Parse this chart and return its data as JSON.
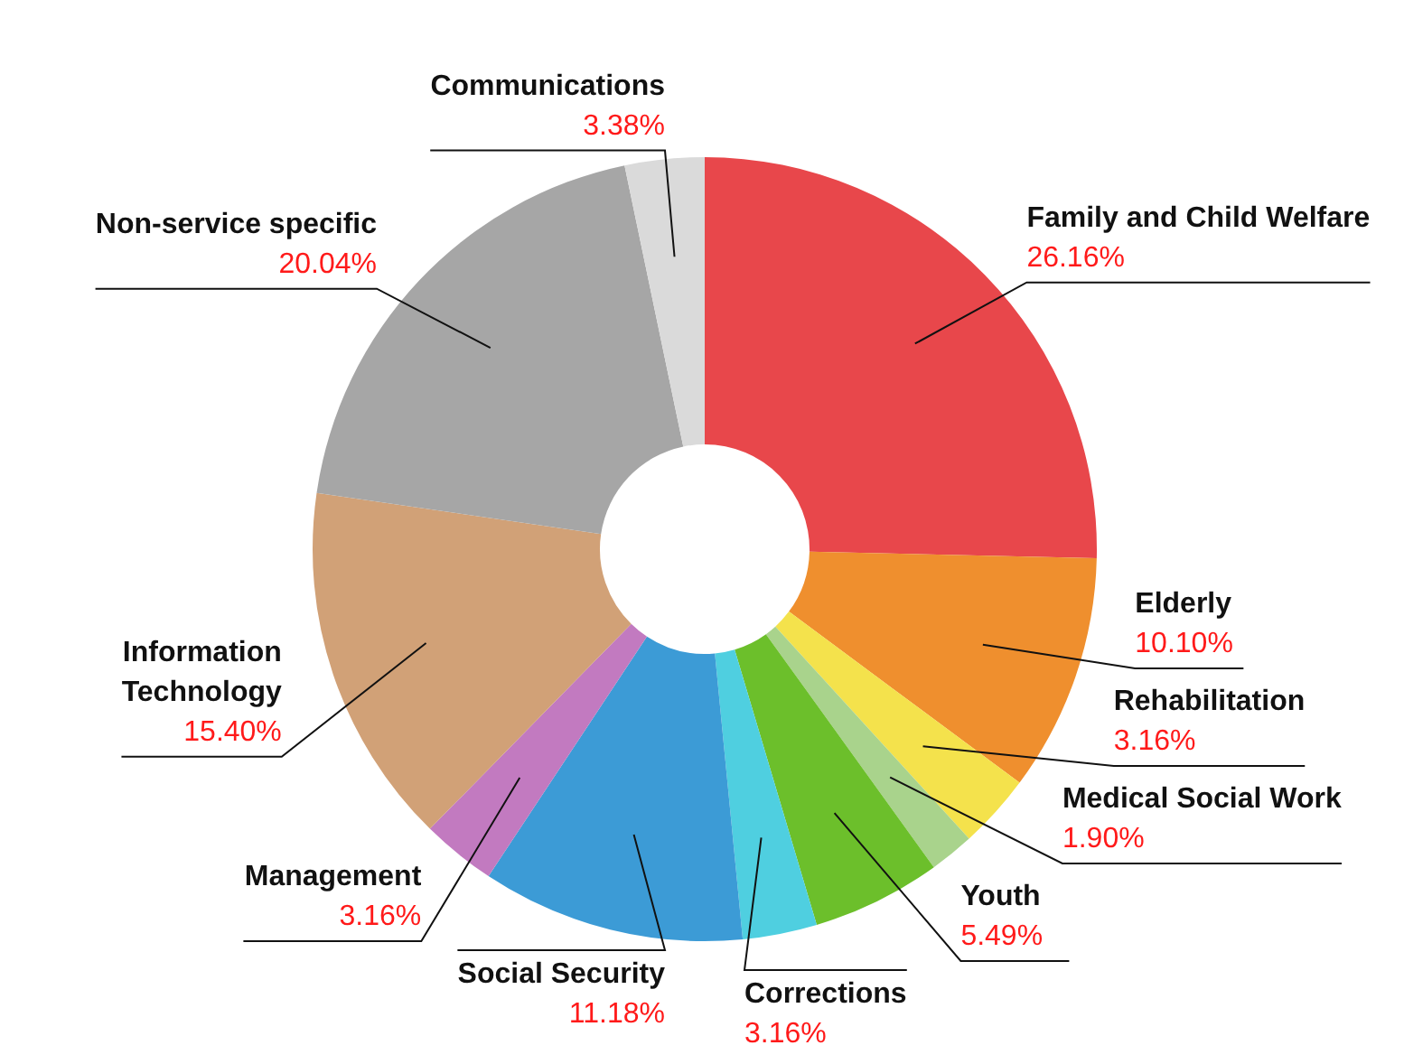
{
  "chart_data": {
    "type": "donut",
    "categories": [
      "Family and Child Welfare",
      "Elderly",
      "Rehabilitation",
      "Medical Social Work",
      "Youth",
      "Corrections",
      "Social Security",
      "Management",
      "Information Technology",
      "Non-service specific",
      "Communications"
    ],
    "values": [
      26.16,
      10.1,
      3.16,
      1.9,
      5.49,
      3.16,
      11.18,
      3.16,
      15.4,
      20.04,
      3.38
    ],
    "value_labels": [
      "26.16%",
      "10.10%",
      "3.16%",
      "1.90%",
      "5.49%",
      "3.16%",
      "11.18%",
      "3.16%",
      "15.40%",
      "20.04%",
      "3.38%"
    ],
    "colors": [
      "#e8474b",
      "#ef8f2e",
      "#f4e24c",
      "#a9d38c",
      "#6cbf2b",
      "#4fcfe0",
      "#3c9bd6",
      "#c27ac0",
      "#d1a177",
      "#a6a6a6",
      "#dadada"
    ]
  }
}
